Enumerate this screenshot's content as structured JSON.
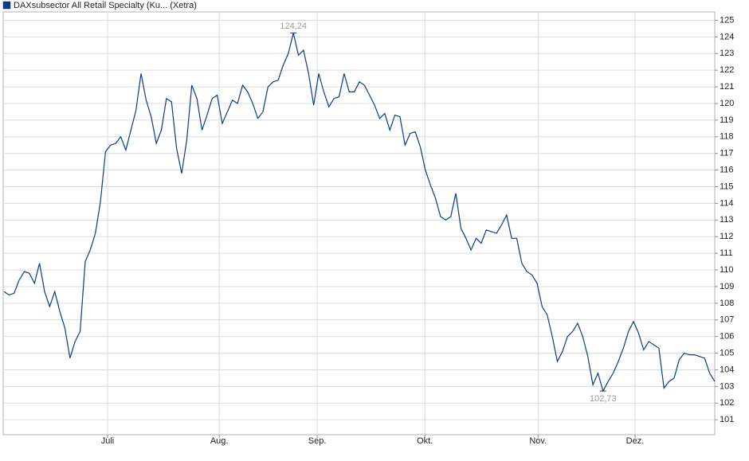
{
  "chart_data": {
    "type": "line",
    "series": [
      {
        "name": "DAXsubsector All Retail Specialty (Ku... (Xetra)",
        "color": "#0b3a8a",
        "values": [
          108.7,
          108.5,
          108.6,
          109.4,
          109.9,
          109.8,
          109.2,
          110.4,
          108.7,
          107.8,
          108.7,
          107.5,
          106.5,
          104.7,
          105.7,
          106.3,
          110.5,
          111.2,
          112.2,
          114.1,
          117.1,
          117.5,
          117.6,
          118.0,
          117.2,
          118.4,
          119.6,
          121.8,
          120.2,
          119.2,
          117.6,
          118.4,
          120.3,
          120.1,
          117.3,
          115.8,
          117.8,
          121.1,
          120.3,
          118.4,
          119.3,
          120.3,
          120.5,
          118.8,
          119.5,
          120.2,
          120.0,
          121.1,
          120.7,
          120.0,
          119.1,
          119.5,
          121.0,
          121.3,
          121.4,
          122.3,
          123.0,
          124.24,
          122.9,
          123.2,
          121.8,
          119.9,
          121.8,
          120.7,
          119.8,
          120.3,
          120.4,
          121.8,
          120.7,
          120.7,
          121.3,
          121.1,
          120.5,
          119.9,
          119.1,
          119.4,
          118.4,
          119.3,
          119.2,
          117.5,
          118.2,
          118.3,
          117.4,
          116.0,
          115.1,
          114.3,
          113.2,
          113.0,
          113.2,
          114.6,
          112.5,
          111.9,
          111.2,
          111.9,
          111.6,
          112.4,
          112.3,
          112.2,
          112.7,
          113.3,
          111.9,
          111.9,
          110.4,
          109.9,
          109.7,
          109.2,
          107.8,
          107.3,
          106.0,
          104.5,
          105.1,
          106.0,
          106.3,
          106.8,
          106.0,
          104.8,
          103.1,
          103.8,
          102.73,
          103.3,
          103.8,
          104.5,
          105.3,
          106.3,
          106.9,
          106.2,
          105.2,
          105.7,
          105.5,
          105.3,
          102.9,
          103.3,
          103.5,
          104.6,
          105.0,
          104.9,
          104.9,
          104.8,
          104.7,
          103.8,
          103.3
        ]
      }
    ],
    "x": [
      0,
      1,
      2,
      3,
      4,
      5,
      6,
      7,
      8,
      9,
      10,
      11,
      12,
      13,
      14,
      15,
      16,
      17,
      18,
      19,
      20,
      21,
      22,
      23,
      24,
      25,
      26,
      27,
      28,
      29,
      30,
      31,
      32,
      33,
      34,
      35,
      36,
      37,
      38,
      39,
      40,
      41,
      42,
      43,
      44,
      45,
      46,
      47,
      48,
      49,
      50,
      51,
      52,
      53,
      54,
      55,
      56,
      57,
      58,
      59,
      60,
      61,
      62,
      63,
      64,
      65,
      66,
      67,
      68,
      69,
      70,
      71,
      72,
      73,
      74,
      75,
      76,
      77,
      78,
      79,
      80,
      81,
      82,
      83,
      84,
      85,
      86,
      87,
      88,
      89,
      90,
      91,
      92,
      93,
      94,
      95,
      96,
      97,
      98,
      99,
      100,
      101,
      102,
      103,
      104,
      105,
      106,
      107,
      108,
      109,
      110,
      111,
      112,
      113,
      114,
      115,
      116,
      117,
      118,
      119,
      120,
      121,
      122,
      123,
      124,
      125,
      126,
      127,
      128,
      129,
      130,
      131,
      132,
      133,
      134,
      135,
      136,
      137,
      138,
      139,
      140
    ],
    "xlim": [
      0,
      140
    ],
    "xticks": [
      {
        "value": 20.4,
        "label": "Juli"
      },
      {
        "value": 42.4,
        "label": "Aug."
      },
      {
        "value": 61.7,
        "label": "Sep."
      },
      {
        "value": 82.9,
        "label": "Okt."
      },
      {
        "value": 105.2,
        "label": "Nov."
      },
      {
        "value": 124.3,
        "label": "Dez."
      }
    ],
    "ylim": [
      100.1,
      125.5
    ],
    "yticks": [
      101,
      102,
      103,
      104,
      105,
      106,
      107,
      108,
      109,
      110,
      111,
      112,
      113,
      114,
      115,
      116,
      117,
      118,
      119,
      120,
      121,
      122,
      123,
      124,
      125
    ],
    "annotations": [
      {
        "x": 57,
        "y": 124.24,
        "label": "124,24"
      },
      {
        "x": 118,
        "y": 102.73,
        "label": "102,73"
      }
    ],
    "grid": true
  }
}
